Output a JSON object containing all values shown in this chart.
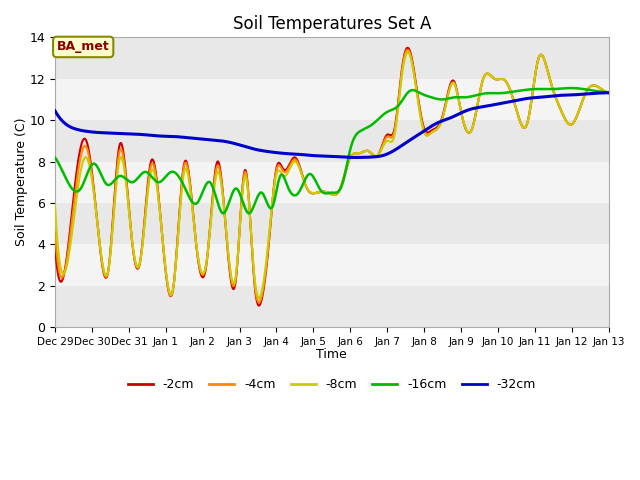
{
  "title": "Soil Temperatures Set A",
  "xlabel": "Time",
  "ylabel": "Soil Temperature (C)",
  "ylim": [
    0,
    14
  ],
  "xtick_labels": [
    "Dec 29",
    "Dec 30",
    "Dec 31",
    "Jan 1",
    "Jan 2",
    "Jan 3",
    "Jan 4",
    "Jan 5",
    "Jan 6",
    "Jan 7",
    "Jan 8",
    "Jan 9",
    "Jan 10",
    "Jan 11",
    "Jan 12",
    "Jan 13"
  ],
  "legend_labels": [
    "-2cm",
    "-4cm",
    "-8cm",
    "-16cm",
    "-32cm"
  ],
  "colors": [
    "#cc0000",
    "#ff8800",
    "#cccc00",
    "#00bb00",
    "#0000cc"
  ],
  "line_widths": [
    1.5,
    1.5,
    1.5,
    1.8,
    2.2
  ],
  "annotation_text": "BA_met",
  "bg_bands": [
    [
      0,
      2,
      "#e8e8e8"
    ],
    [
      2,
      4,
      "#f4f4f4"
    ],
    [
      4,
      6,
      "#e8e8e8"
    ],
    [
      6,
      8,
      "#f4f4f4"
    ],
    [
      8,
      10,
      "#e8e8e8"
    ],
    [
      10,
      12,
      "#f4f4f4"
    ],
    [
      12,
      14,
      "#e8e8e8"
    ]
  ],
  "title_fontsize": 12,
  "red_kx": [
    0,
    0.25,
    0.55,
    0.85,
    1.15,
    1.45,
    1.75,
    2.05,
    2.3,
    2.6,
    2.9,
    3.2,
    3.5,
    3.8,
    4.1,
    4.4,
    4.65,
    4.9,
    5.15,
    5.4,
    5.6,
    5.8,
    6.0,
    6.2,
    6.5,
    6.8,
    7.1,
    7.4,
    7.7,
    8.0,
    8.25,
    8.5,
    8.75,
    9.0,
    9.2,
    9.4,
    9.6,
    9.8,
    10.0,
    10.2,
    10.5,
    10.8,
    11.0,
    11.3,
    11.6,
    11.9,
    12.2,
    12.5,
    12.8,
    13.1,
    13.4,
    13.7,
    14.0,
    14.4,
    14.8,
    15.0
  ],
  "red_ky": [
    3.9,
    2.6,
    7.0,
    9.0,
    5.0,
    2.8,
    8.8,
    4.8,
    3.1,
    8.0,
    4.5,
    1.85,
    7.9,
    4.4,
    3.0,
    8.0,
    4.3,
    2.3,
    7.6,
    2.2,
    1.35,
    4.2,
    7.7,
    7.6,
    8.2,
    6.8,
    6.5,
    6.5,
    6.6,
    8.2,
    8.4,
    8.5,
    8.3,
    9.3,
    9.6,
    12.5,
    13.4,
    11.5,
    9.6,
    9.5,
    10.2,
    11.9,
    10.4,
    9.6,
    12.0,
    12.0,
    11.9,
    10.5,
    9.9,
    13.0,
    12.0,
    10.5,
    9.8,
    11.4,
    11.5,
    11.3
  ],
  "orange_kx": [
    0,
    0.25,
    0.55,
    0.85,
    1.15,
    1.45,
    1.75,
    2.05,
    2.3,
    2.6,
    2.9,
    3.2,
    3.5,
    3.8,
    4.1,
    4.4,
    4.65,
    4.9,
    5.15,
    5.4,
    5.6,
    5.8,
    6.0,
    6.2,
    6.5,
    6.8,
    7.1,
    7.4,
    7.7,
    8.0,
    8.25,
    8.5,
    8.75,
    9.0,
    9.2,
    9.4,
    9.6,
    9.8,
    10.0,
    10.2,
    10.5,
    10.8,
    11.0,
    11.3,
    11.6,
    11.9,
    12.2,
    12.5,
    12.8,
    13.1,
    13.4,
    13.7,
    14.0,
    14.4,
    14.8,
    15.0
  ],
  "orange_ky": [
    4.6,
    2.6,
    6.5,
    8.7,
    5.0,
    2.8,
    8.5,
    4.8,
    3.1,
    7.8,
    4.5,
    1.85,
    7.8,
    4.4,
    3.1,
    7.8,
    4.4,
    2.4,
    7.5,
    2.3,
    1.5,
    4.3,
    7.6,
    7.5,
    8.1,
    6.8,
    6.5,
    6.5,
    6.6,
    8.2,
    8.4,
    8.5,
    8.3,
    9.2,
    9.5,
    12.4,
    13.3,
    11.4,
    9.5,
    9.4,
    10.1,
    11.8,
    10.4,
    9.6,
    12.0,
    12.0,
    11.9,
    10.5,
    9.9,
    13.0,
    12.0,
    10.5,
    9.8,
    11.4,
    11.5,
    11.3
  ],
  "yellow_kx": [
    0,
    0.25,
    0.55,
    0.85,
    1.15,
    1.45,
    1.75,
    2.05,
    2.3,
    2.6,
    2.9,
    3.2,
    3.5,
    3.8,
    4.1,
    4.4,
    4.65,
    4.9,
    5.15,
    5.4,
    5.6,
    5.8,
    6.0,
    6.2,
    6.5,
    6.8,
    7.1,
    7.4,
    7.7,
    8.0,
    8.25,
    8.5,
    8.75,
    9.0,
    9.2,
    9.4,
    9.6,
    9.8,
    10.0,
    10.2,
    10.5,
    10.8,
    11.0,
    11.3,
    11.6,
    11.9,
    12.2,
    12.5,
    12.8,
    13.1,
    13.4,
    13.7,
    14.0,
    14.4,
    14.8,
    15.0
  ],
  "yellow_ky": [
    5.9,
    2.6,
    5.8,
    8.2,
    5.0,
    2.8,
    8.1,
    4.8,
    3.1,
    7.5,
    4.5,
    1.85,
    7.5,
    4.4,
    3.1,
    7.5,
    4.4,
    2.5,
    7.3,
    2.5,
    1.7,
    4.5,
    7.4,
    7.3,
    8.0,
    6.8,
    6.5,
    6.5,
    6.6,
    8.2,
    8.4,
    8.5,
    8.3,
    9.0,
    9.3,
    12.2,
    13.2,
    11.3,
    9.4,
    9.4,
    10.1,
    11.8,
    10.4,
    9.6,
    12.0,
    12.0,
    11.9,
    10.5,
    9.9,
    13.0,
    12.0,
    10.5,
    9.8,
    11.4,
    11.5,
    11.3
  ],
  "green_kx": [
    0,
    0.35,
    0.7,
    1.05,
    1.4,
    1.75,
    2.1,
    2.45,
    2.8,
    3.15,
    3.5,
    3.85,
    4.2,
    4.55,
    4.9,
    5.25,
    5.6,
    5.9,
    6.1,
    6.3,
    6.6,
    6.9,
    7.2,
    7.5,
    7.8,
    8.0,
    8.3,
    8.6,
    9.0,
    9.3,
    9.6,
    9.9,
    10.2,
    10.5,
    10.8,
    11.1,
    11.4,
    11.7,
    12.0,
    12.5,
    13.0,
    13.5,
    14.0,
    14.5,
    15.0
  ],
  "green_ky": [
    8.2,
    7.0,
    6.7,
    7.9,
    6.9,
    7.3,
    7.0,
    7.5,
    7.0,
    7.5,
    6.8,
    6.0,
    7.0,
    5.5,
    6.7,
    5.5,
    6.5,
    5.85,
    7.3,
    6.8,
    6.5,
    7.4,
    6.6,
    6.5,
    7.0,
    8.6,
    9.5,
    9.8,
    10.4,
    10.7,
    11.4,
    11.3,
    11.1,
    11.0,
    11.1,
    11.1,
    11.2,
    11.3,
    11.3,
    11.4,
    11.5,
    11.5,
    11.55,
    11.45,
    11.35
  ],
  "blue_kx": [
    0,
    0.3,
    0.6,
    0.9,
    1.2,
    1.5,
    1.8,
    2.1,
    2.4,
    2.7,
    3.0,
    3.3,
    3.6,
    3.9,
    4.2,
    4.5,
    4.8,
    5.1,
    5.4,
    5.7,
    6.0,
    6.3,
    6.6,
    6.9,
    7.2,
    7.5,
    7.8,
    8.0,
    8.3,
    8.6,
    8.9,
    9.2,
    9.5,
    9.8,
    10.1,
    10.4,
    10.7,
    11.0,
    11.3,
    11.6,
    11.9,
    12.2,
    12.5,
    12.8,
    13.1,
    13.4,
    13.7,
    14.0,
    14.5,
    15.0
  ],
  "blue_ky": [
    10.45,
    9.8,
    9.55,
    9.45,
    9.4,
    9.38,
    9.35,
    9.33,
    9.3,
    9.25,
    9.22,
    9.2,
    9.15,
    9.1,
    9.05,
    9.0,
    8.9,
    8.75,
    8.6,
    8.5,
    8.43,
    8.38,
    8.35,
    8.3,
    8.27,
    8.25,
    8.22,
    8.2,
    8.2,
    8.22,
    8.3,
    8.55,
    8.9,
    9.25,
    9.6,
    9.9,
    10.1,
    10.35,
    10.55,
    10.65,
    10.75,
    10.85,
    10.95,
    11.05,
    11.1,
    11.15,
    11.2,
    11.22,
    11.28,
    11.32
  ]
}
